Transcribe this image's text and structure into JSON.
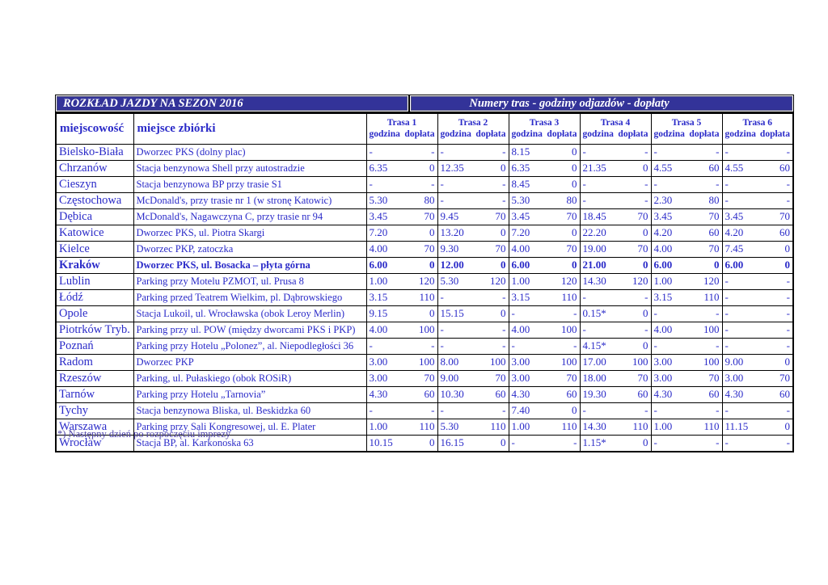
{
  "title_bar": {
    "left": "ROZKŁAD JAZDY NA SEZON 2016",
    "right": "Numery tras  -  godziny odjazdów  -  dopłaty"
  },
  "colors": {
    "bar_background": "#333399",
    "bar_text": "#ffffff",
    "table_text": "#2a2ac8",
    "footnote_text": "#4a3fa8",
    "border": "#000000"
  },
  "table": {
    "col_headers": {
      "city": "miejscowość",
      "place": "miejsce zbiórki",
      "routes": [
        "Trasa 1",
        "Trasa 2",
        "Trasa 3",
        "Trasa 4",
        "Trasa 5",
        "Trasa 6"
      ],
      "sub_hour": "godzina",
      "sub_fee": "dopłata"
    },
    "rows": [
      {
        "city": "Bielsko-Biała",
        "place": "Dworzec PKS (dolny plac)",
        "bold": false,
        "values": [
          [
            "-",
            "-"
          ],
          [
            "-",
            "-"
          ],
          [
            "8.15",
            "0"
          ],
          [
            "-",
            "-"
          ],
          [
            "-",
            "-"
          ],
          [
            "-",
            "-"
          ]
        ]
      },
      {
        "city": "Chrzanów",
        "place": "Stacja benzynowa Shell przy autostradzie",
        "bold": false,
        "values": [
          [
            "6.35",
            "0"
          ],
          [
            "12.35",
            "0"
          ],
          [
            "6.35",
            "0"
          ],
          [
            "21.35",
            "0"
          ],
          [
            "4.55",
            "60"
          ],
          [
            "4.55",
            "60"
          ]
        ]
      },
      {
        "city": "Cieszyn",
        "place": "Stacja benzynowa BP przy trasie S1",
        "bold": false,
        "values": [
          [
            "-",
            "-"
          ],
          [
            "-",
            "-"
          ],
          [
            "8.45",
            "0"
          ],
          [
            "-",
            "-"
          ],
          [
            "-",
            "-"
          ],
          [
            "-",
            "-"
          ]
        ]
      },
      {
        "city": "Częstochowa",
        "place": "McDonald's, przy trasie nr 1 (w stronę Katowic)",
        "bold": false,
        "values": [
          [
            "5.30",
            "80"
          ],
          [
            "-",
            "-"
          ],
          [
            "5.30",
            "80"
          ],
          [
            "-",
            "-"
          ],
          [
            "2.30",
            "80"
          ],
          [
            "-",
            "-"
          ]
        ]
      },
      {
        "city": "Dębica",
        "place": "McDonald's, Nagawczyna C, przy trasie nr 94",
        "bold": false,
        "values": [
          [
            "3.45",
            "70"
          ],
          [
            "9.45",
            "70"
          ],
          [
            "3.45",
            "70"
          ],
          [
            "18.45",
            "70"
          ],
          [
            "3.45",
            "70"
          ],
          [
            "3.45",
            "70"
          ]
        ]
      },
      {
        "city": "Katowice",
        "place": "Dworzec PKS, ul. Piotra Skargi",
        "bold": false,
        "values": [
          [
            "7.20",
            "0"
          ],
          [
            "13.20",
            "0"
          ],
          [
            "7.20",
            "0"
          ],
          [
            "22.20",
            "0"
          ],
          [
            "4.20",
            "60"
          ],
          [
            "4.20",
            "60"
          ]
        ]
      },
      {
        "city": "Kielce",
        "place": "Dworzec PKP, zatoczka",
        "bold": false,
        "values": [
          [
            "4.00",
            "70"
          ],
          [
            "9.30",
            "70"
          ],
          [
            "4.00",
            "70"
          ],
          [
            "19.00",
            "70"
          ],
          [
            "4.00",
            "70"
          ],
          [
            "7.45",
            "0"
          ]
        ]
      },
      {
        "city": "Kraków",
        "place": "Dworzec PKS, ul. Bosacka – płyta górna",
        "bold": true,
        "values": [
          [
            "6.00",
            "0"
          ],
          [
            "12.00",
            "0"
          ],
          [
            "6.00",
            "0"
          ],
          [
            "21.00",
            "0"
          ],
          [
            "6.00",
            "0"
          ],
          [
            "6.00",
            "0"
          ]
        ]
      },
      {
        "city": "Lublin",
        "place": "Parking przy Motelu PZMOT, ul. Prusa 8",
        "bold": false,
        "values": [
          [
            "1.00",
            "120"
          ],
          [
            "5.30",
            "120"
          ],
          [
            "1.00",
            "120"
          ],
          [
            "14.30",
            "120"
          ],
          [
            "1.00",
            "120"
          ],
          [
            "-",
            "-"
          ]
        ]
      },
      {
        "city": "Łódź",
        "place": "Parking przed Teatrem Wielkim, pl. Dąbrowskiego",
        "bold": false,
        "values": [
          [
            "3.15",
            "110"
          ],
          [
            "-",
            "-"
          ],
          [
            "3.15",
            "110"
          ],
          [
            "-",
            "-"
          ],
          [
            "3.15",
            "110"
          ],
          [
            "-",
            "-"
          ]
        ]
      },
      {
        "city": "Opole",
        "place": "Stacja Lukoil, ul. Wrocławska (obok Leroy Merlin)",
        "bold": false,
        "values": [
          [
            "9.15",
            "0"
          ],
          [
            "15.15",
            "0"
          ],
          [
            "-",
            "-"
          ],
          [
            "0.15*",
            "0"
          ],
          [
            "-",
            "-"
          ],
          [
            "-",
            "-"
          ]
        ]
      },
      {
        "city": "Piotrków Tryb.",
        "place": "Parking przy ul. POW (między dworcami PKS i PKP)",
        "bold": false,
        "values": [
          [
            "4.00",
            "100"
          ],
          [
            "-",
            "-"
          ],
          [
            "4.00",
            "100"
          ],
          [
            "-",
            "-"
          ],
          [
            "4.00",
            "100"
          ],
          [
            "-",
            "-"
          ]
        ]
      },
      {
        "city": "Poznań",
        "place": "Parking przy Hotelu „Polonez”, al. Niepodległości 36",
        "bold": false,
        "values": [
          [
            "-",
            "-"
          ],
          [
            "-",
            "-"
          ],
          [
            "-",
            "-"
          ],
          [
            "4.15*",
            "0"
          ],
          [
            "-",
            "-"
          ],
          [
            "-",
            "-"
          ]
        ]
      },
      {
        "city": "Radom",
        "place": "Dworzec PKP",
        "bold": false,
        "values": [
          [
            "3.00",
            "100"
          ],
          [
            "8.00",
            "100"
          ],
          [
            "3.00",
            "100"
          ],
          [
            "17.00",
            "100"
          ],
          [
            "3.00",
            "100"
          ],
          [
            "9.00",
            "0"
          ]
        ]
      },
      {
        "city": "Rzeszów",
        "place": "Parking, ul. Pułaskiego (obok ROSiR)",
        "bold": false,
        "values": [
          [
            "3.00",
            "70"
          ],
          [
            "9.00",
            "70"
          ],
          [
            "3.00",
            "70"
          ],
          [
            "18.00",
            "70"
          ],
          [
            "3.00",
            "70"
          ],
          [
            "3.00",
            "70"
          ]
        ]
      },
      {
        "city": "Tarnów",
        "place": "Parking przy Hotelu „Tarnovia”",
        "bold": false,
        "values": [
          [
            "4.30",
            "60"
          ],
          [
            "10.30",
            "60"
          ],
          [
            "4.30",
            "60"
          ],
          [
            "19.30",
            "60"
          ],
          [
            "4.30",
            "60"
          ],
          [
            "4.30",
            "60"
          ]
        ]
      },
      {
        "city": "Tychy",
        "place": "Stacja benzynowa Bliska, ul. Beskidzka 60",
        "bold": false,
        "values": [
          [
            "-",
            "-"
          ],
          [
            "-",
            "-"
          ],
          [
            "7.40",
            "0"
          ],
          [
            "-",
            "-"
          ],
          [
            "-",
            "-"
          ],
          [
            "-",
            "-"
          ]
        ]
      },
      {
        "city": "Warszawa",
        "place": "Parking przy Sali Kongresowej, ul. E. Plater",
        "bold": false,
        "values": [
          [
            "1.00",
            "110"
          ],
          [
            "5.30",
            "110"
          ],
          [
            "1.00",
            "110"
          ],
          [
            "14.30",
            "110"
          ],
          [
            "1.00",
            "110"
          ],
          [
            "11.15",
            "0"
          ]
        ]
      },
      {
        "city": "Wrocław",
        "place": "Stacja BP, al. Karkonoska  63",
        "bold": false,
        "values": [
          [
            "10.15",
            "0"
          ],
          [
            "16.15",
            "0"
          ],
          [
            "-",
            "-"
          ],
          [
            "1.15*",
            "0"
          ],
          [
            "-",
            "-"
          ],
          [
            "-",
            "-"
          ]
        ]
      }
    ]
  },
  "footnote": "*) Następny dzień po rozpoczęciu imprezy"
}
